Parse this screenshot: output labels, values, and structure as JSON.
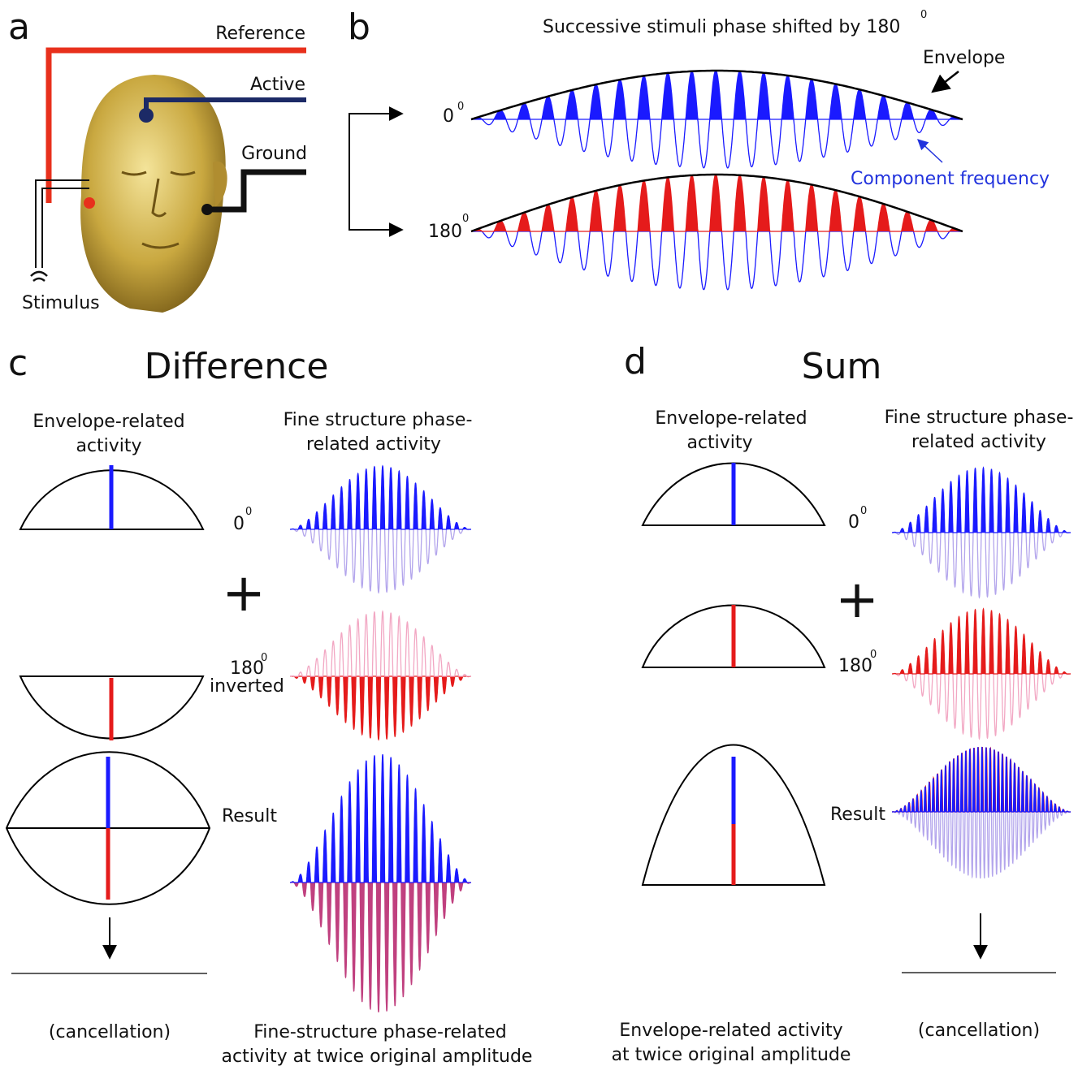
{
  "panel_a": {
    "letter": "a",
    "reference": "Reference",
    "active": "Active",
    "ground": "Ground",
    "stimulus": "Stimulus"
  },
  "panel_b": {
    "letter": "b",
    "title": "Successive stimuli phase shifted by 180",
    "title_sup": "0",
    "envelope": "Envelope",
    "phase_0": "0",
    "phase_0_sup": "0",
    "phase_180": "180",
    "phase_180_sup": "0",
    "component": "Component frequency"
  },
  "panel_c": {
    "letter": "c",
    "title": "Difference",
    "envelope_heading": [
      "Envelope-related",
      "activity"
    ],
    "fine_heading": [
      "Fine structure phase-",
      "related activity"
    ],
    "phase_0": "0",
    "phase_0_sup": "0",
    "phase_180": "180",
    "phase_180_sup": "0",
    "inverted": "inverted",
    "plus": "+",
    "result": "Result",
    "envelope_outcome": "(cancellation)",
    "fine_outcome": [
      "Fine-structure phase-related",
      "activity at twice original amplitude"
    ]
  },
  "panel_d": {
    "letter": "d",
    "title": "Sum",
    "envelope_heading": [
      "Envelope-related",
      "activity"
    ],
    "fine_heading": [
      "Fine structure phase-",
      "related activity"
    ],
    "phase_0": "0",
    "phase_0_sup": "0",
    "phase_180": "180",
    "phase_180_sup": "0",
    "plus": "+",
    "result": "Result",
    "envelope_outcome": [
      "Envelope-related activity",
      "at twice original amplitude"
    ],
    "fine_outcome": "(cancellation)"
  }
}
